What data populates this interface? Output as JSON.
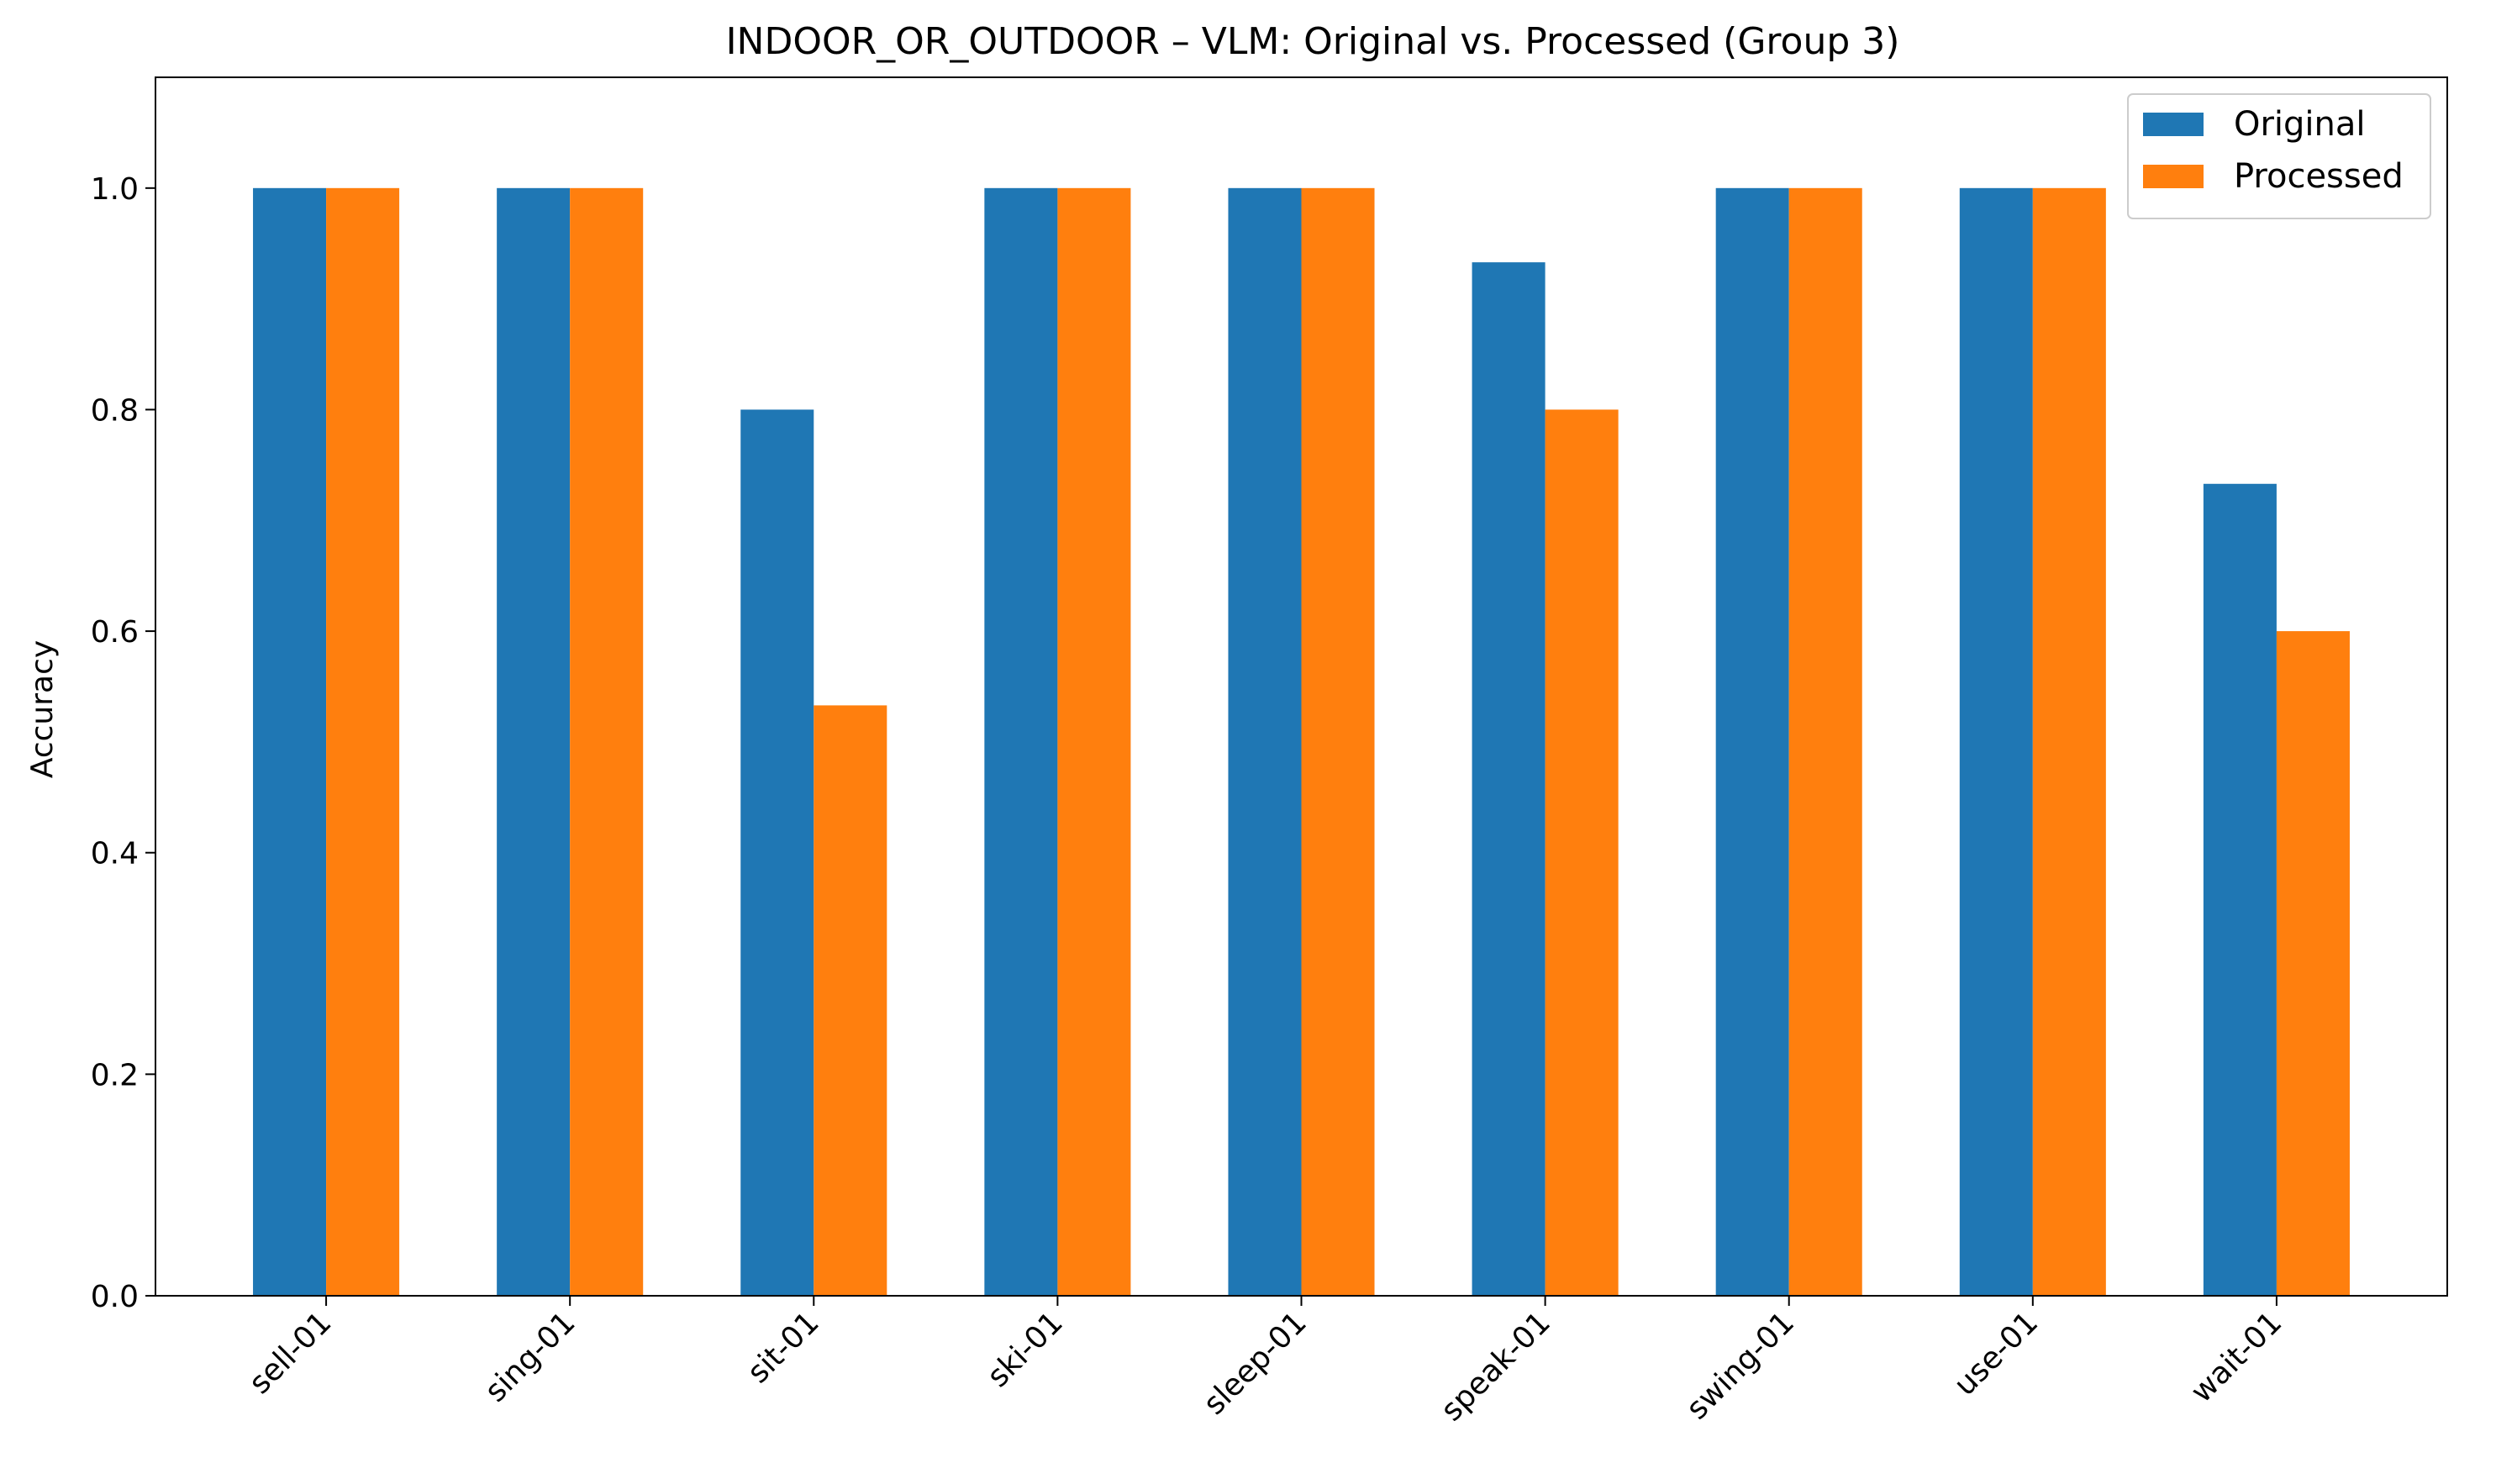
{
  "chart_data": {
    "type": "bar",
    "title": "INDOOR_OR_OUTDOOR – VLM: Original vs. Processed (Group 3)",
    "xlabel": "",
    "ylabel": "Accuracy",
    "ylim": [
      0,
      1.1
    ],
    "yticks": [
      0.0,
      0.2,
      0.4,
      0.6,
      0.8,
      1.0
    ],
    "ytick_labels": [
      "0.0",
      "0.2",
      "0.4",
      "0.6",
      "0.8",
      "1.0"
    ],
    "categories": [
      "sell-01",
      "sing-01",
      "sit-01",
      "ski-01",
      "sleep-01",
      "speak-01",
      "swing-01",
      "use-01",
      "wait-01"
    ],
    "series": [
      {
        "name": "Original",
        "color": "#1f77b4",
        "values": [
          1.0,
          1.0,
          0.8,
          1.0,
          1.0,
          0.933,
          1.0,
          1.0,
          0.733
        ]
      },
      {
        "name": "Processed",
        "color": "#ff7f0e",
        "values": [
          1.0,
          1.0,
          0.533,
          1.0,
          1.0,
          0.8,
          1.0,
          1.0,
          0.6
        ]
      }
    ],
    "legend_position": "top-right",
    "grid": false
  }
}
